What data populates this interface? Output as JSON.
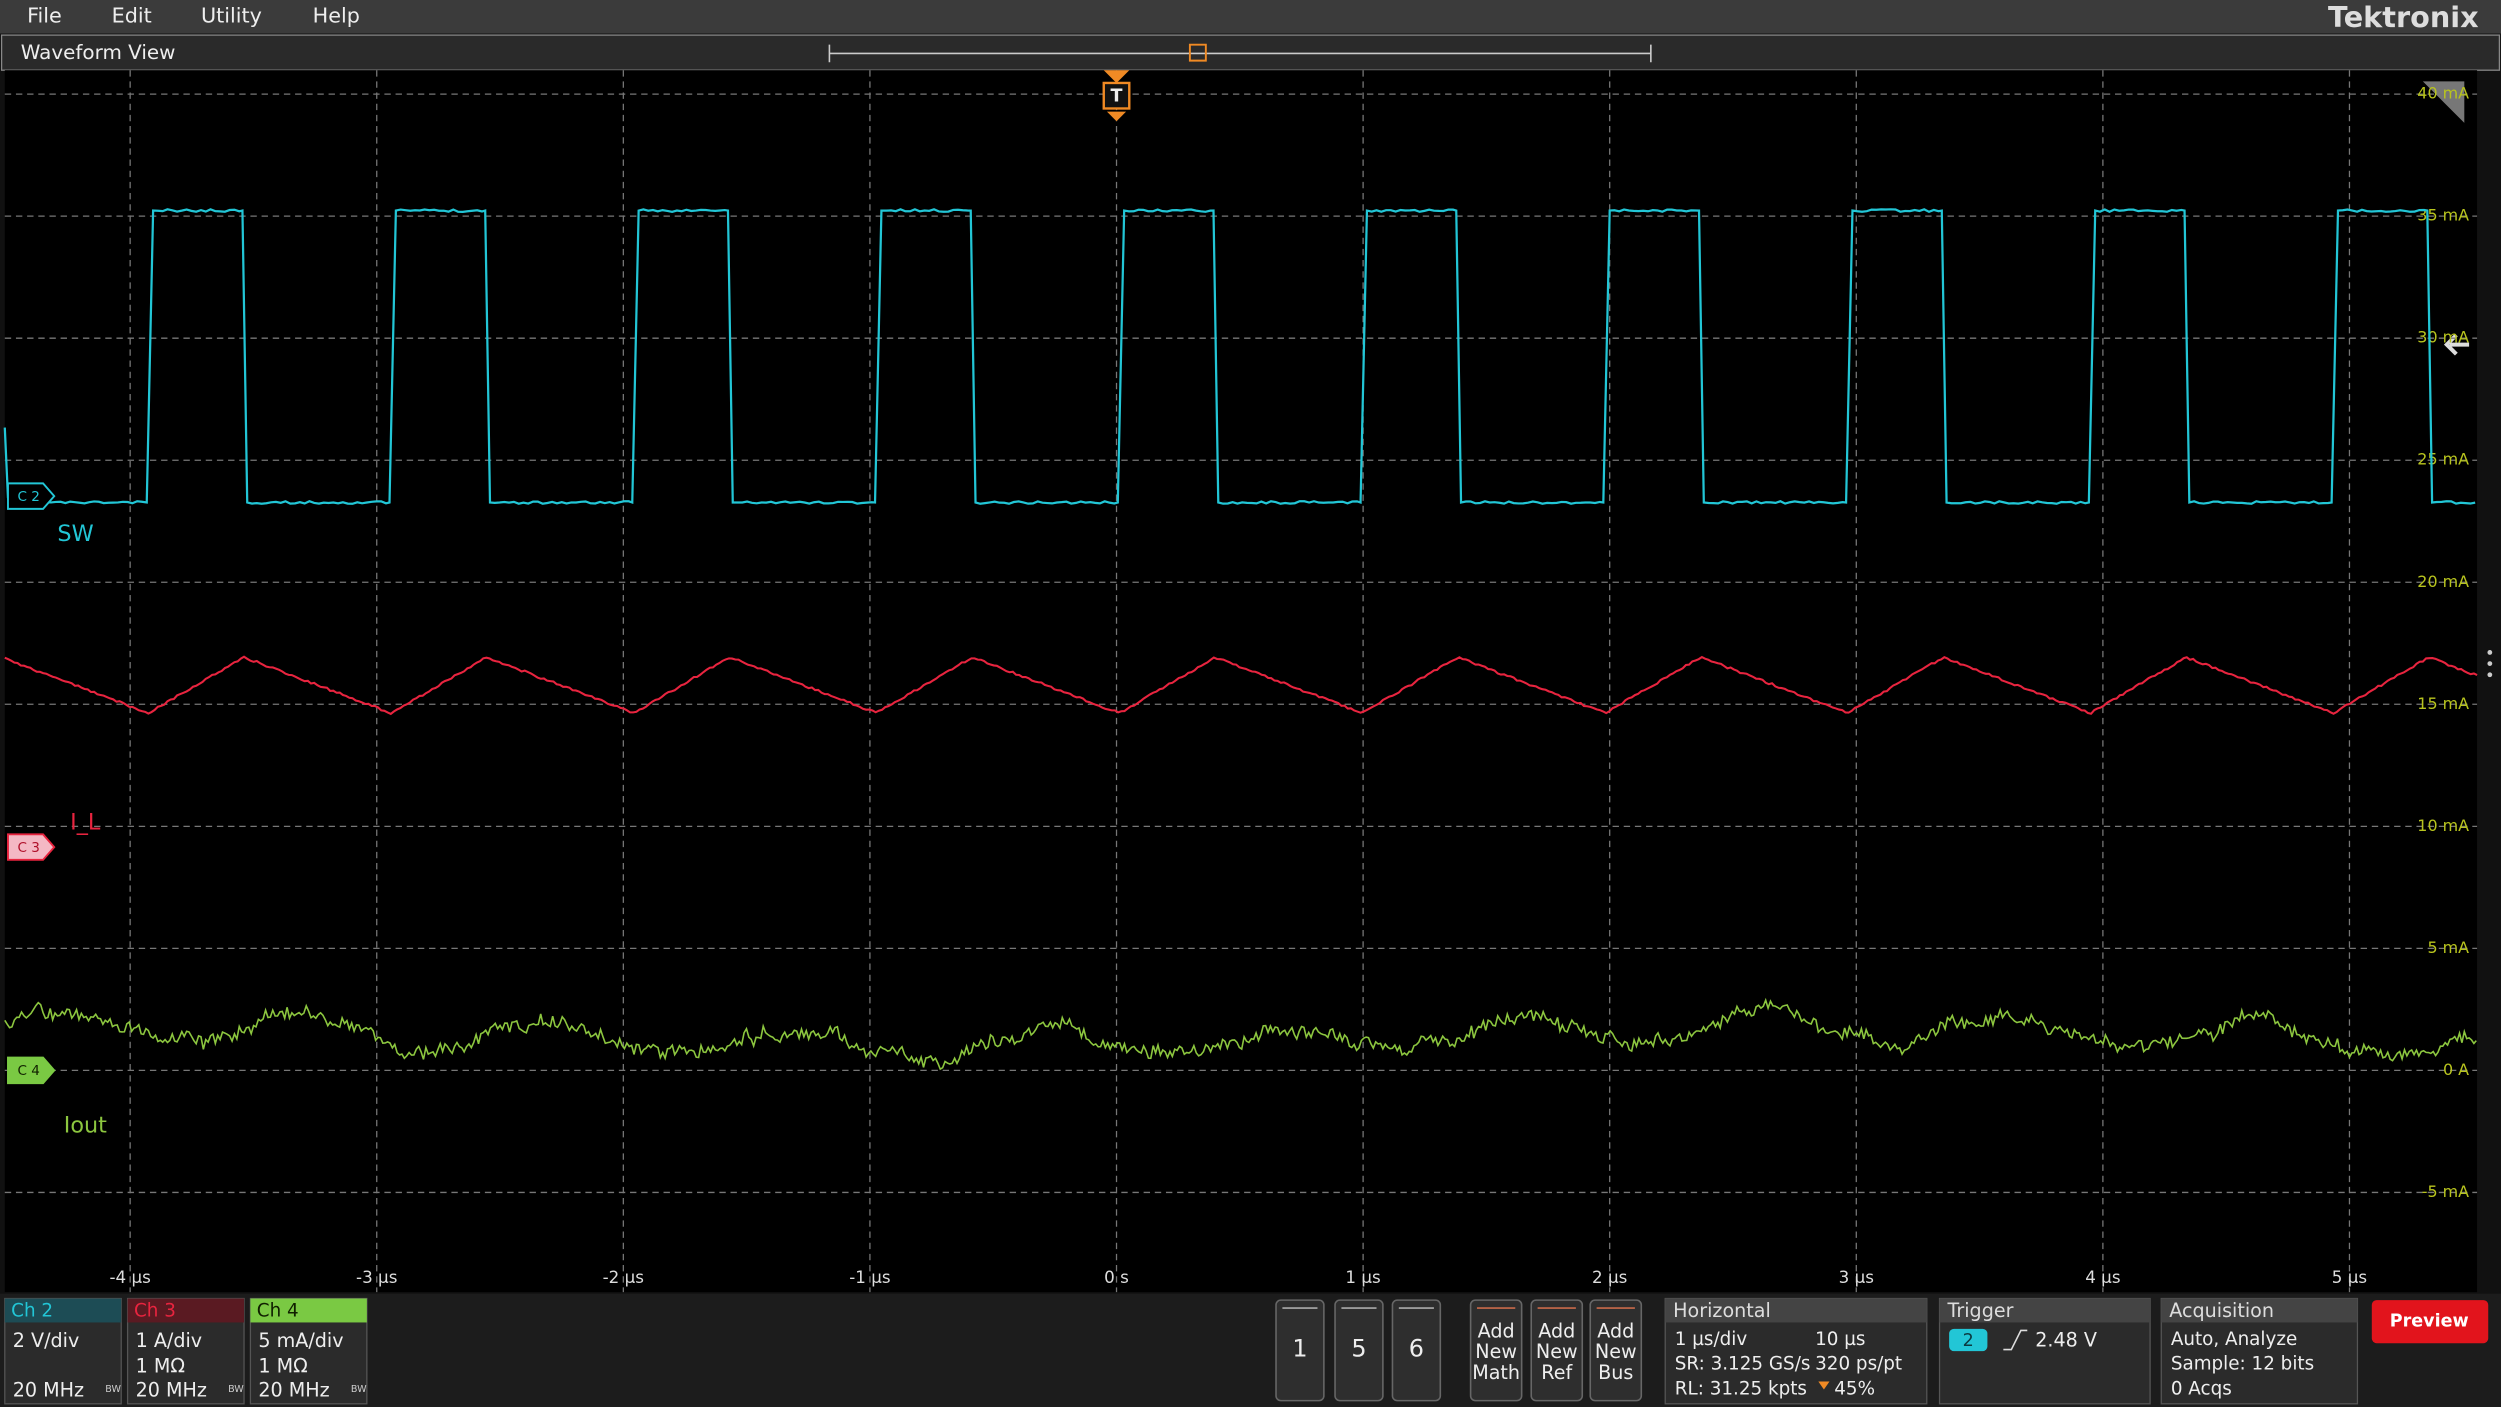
{
  "menu": [
    "File",
    "Edit",
    "Utility",
    "Help"
  ],
  "brand": "Tektronix",
  "waveform_view": {
    "title": "Waveform View",
    "trigger_marker": "T",
    "y_labels": [
      "40 mA",
      "35 mA",
      "30 mA",
      "25 mA",
      "20 mA",
      "15 mA",
      "10 mA",
      "5 mA",
      "0 A",
      "-5 mA"
    ],
    "x_labels": [
      "-4 µs",
      "-3 µs",
      "-2 µs",
      "-1 µs",
      "0 s",
      "1 µs",
      "2 µs",
      "3 µs",
      "4 µs",
      "5 µs"
    ],
    "channels": [
      {
        "marker": "C 2",
        "name": "SW"
      },
      {
        "marker": "C 3",
        "name": "I_L"
      },
      {
        "marker": "C 4",
        "name": "Iout"
      }
    ]
  },
  "channel_badges": [
    {
      "title": "Ch 2",
      "lines": [
        "2 V/div",
        "20 MHz"
      ],
      "bw": "BW"
    },
    {
      "title": "Ch 3",
      "lines": [
        "1 A/div",
        "1 MΩ",
        "20 MHz"
      ],
      "bw": "BW"
    },
    {
      "title": "Ch 4",
      "lines": [
        "5 mA/div",
        "1 MΩ",
        "20 MHz"
      ],
      "bw": "BW"
    }
  ],
  "number_buttons": [
    "1",
    "5",
    "6"
  ],
  "add_buttons": [
    [
      "Add",
      "New",
      "Math"
    ],
    [
      "Add",
      "New",
      "Ref"
    ],
    [
      "Add",
      "New",
      "Bus"
    ]
  ],
  "horizontal": {
    "title": "Horizontal",
    "rows": [
      [
        "1 µs/div",
        "10 µs"
      ],
      [
        "SR: 3.125 GS/s",
        "320 ps/pt"
      ],
      [
        "RL: 31.25 kpts",
        "45%"
      ]
    ]
  },
  "trigger": {
    "title": "Trigger",
    "source": "2",
    "level": "2.48 V"
  },
  "acquisition": {
    "title": "Acquisition",
    "lines": [
      "Auto,   Analyze",
      "Sample: 12 bits",
      "0 Acqs"
    ]
  },
  "preview": "Preview"
}
